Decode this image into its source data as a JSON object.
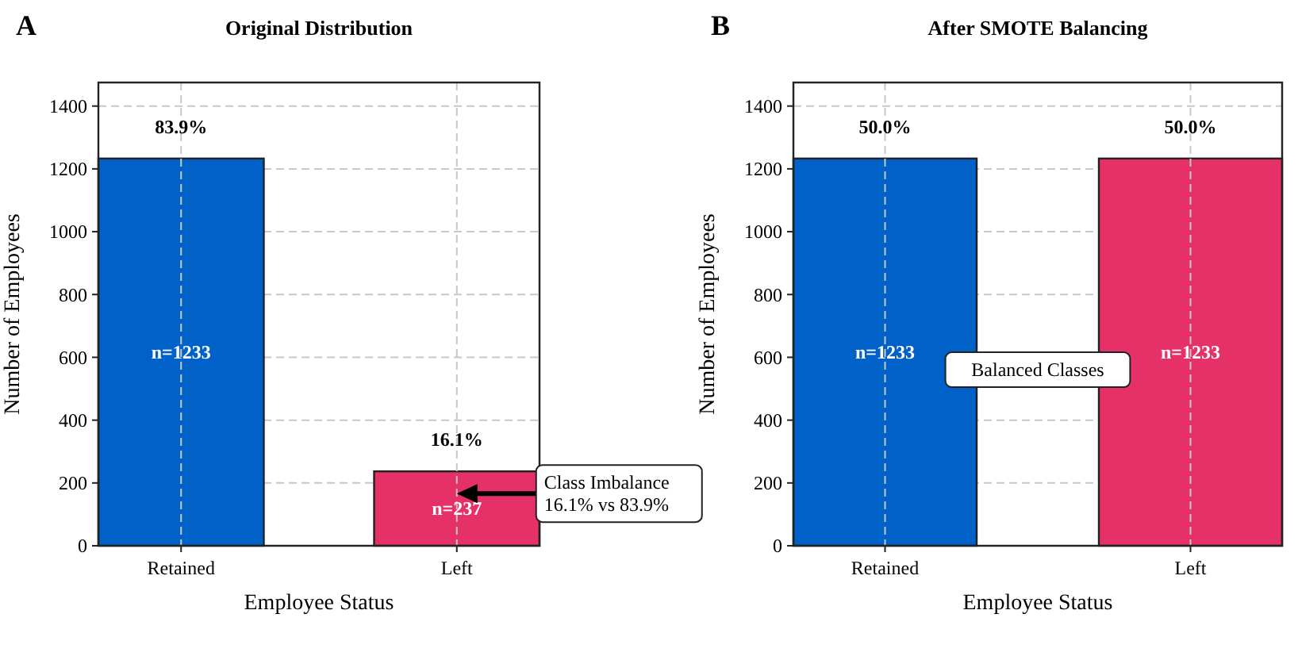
{
  "chart_data": [
    {
      "type": "bar",
      "title": "Original Distribution",
      "xlabel": "Employee Status",
      "ylabel": "Number of Employees",
      "categories": [
        "Retained",
        "Left"
      ],
      "values": [
        1233,
        237
      ],
      "colors": [
        "#0062c8",
        "#e63068"
      ],
      "value_labels": [
        "n=1233",
        "n=237"
      ],
      "ylim": [
        0,
        1475
      ],
      "yticks": [
        0,
        200,
        400,
        600,
        800,
        1000,
        1200,
        1400
      ],
      "grid": true,
      "annotations": [
        "A",
        "83.9%",
        "16.1%",
        "Class Imbalance\n16.1% vs 83.9%"
      ]
    },
    {
      "type": "bar",
      "title": "After SMOTE Balancing",
      "xlabel": "Employee Status",
      "ylabel": "Number of Employees",
      "categories": [
        "Retained",
        "Left"
      ],
      "values": [
        1233,
        1233
      ],
      "colors": [
        "#0062c8",
        "#e63068"
      ],
      "value_labels": [
        "n=1233",
        "n=1233"
      ],
      "ylim": [
        0,
        1475
      ],
      "yticks": [
        0,
        200,
        400,
        600,
        800,
        1000,
        1200,
        1400
      ],
      "grid": true,
      "annotations": [
        "B",
        "50.0%",
        "50.0%",
        "Balanced Classes"
      ]
    }
  ]
}
